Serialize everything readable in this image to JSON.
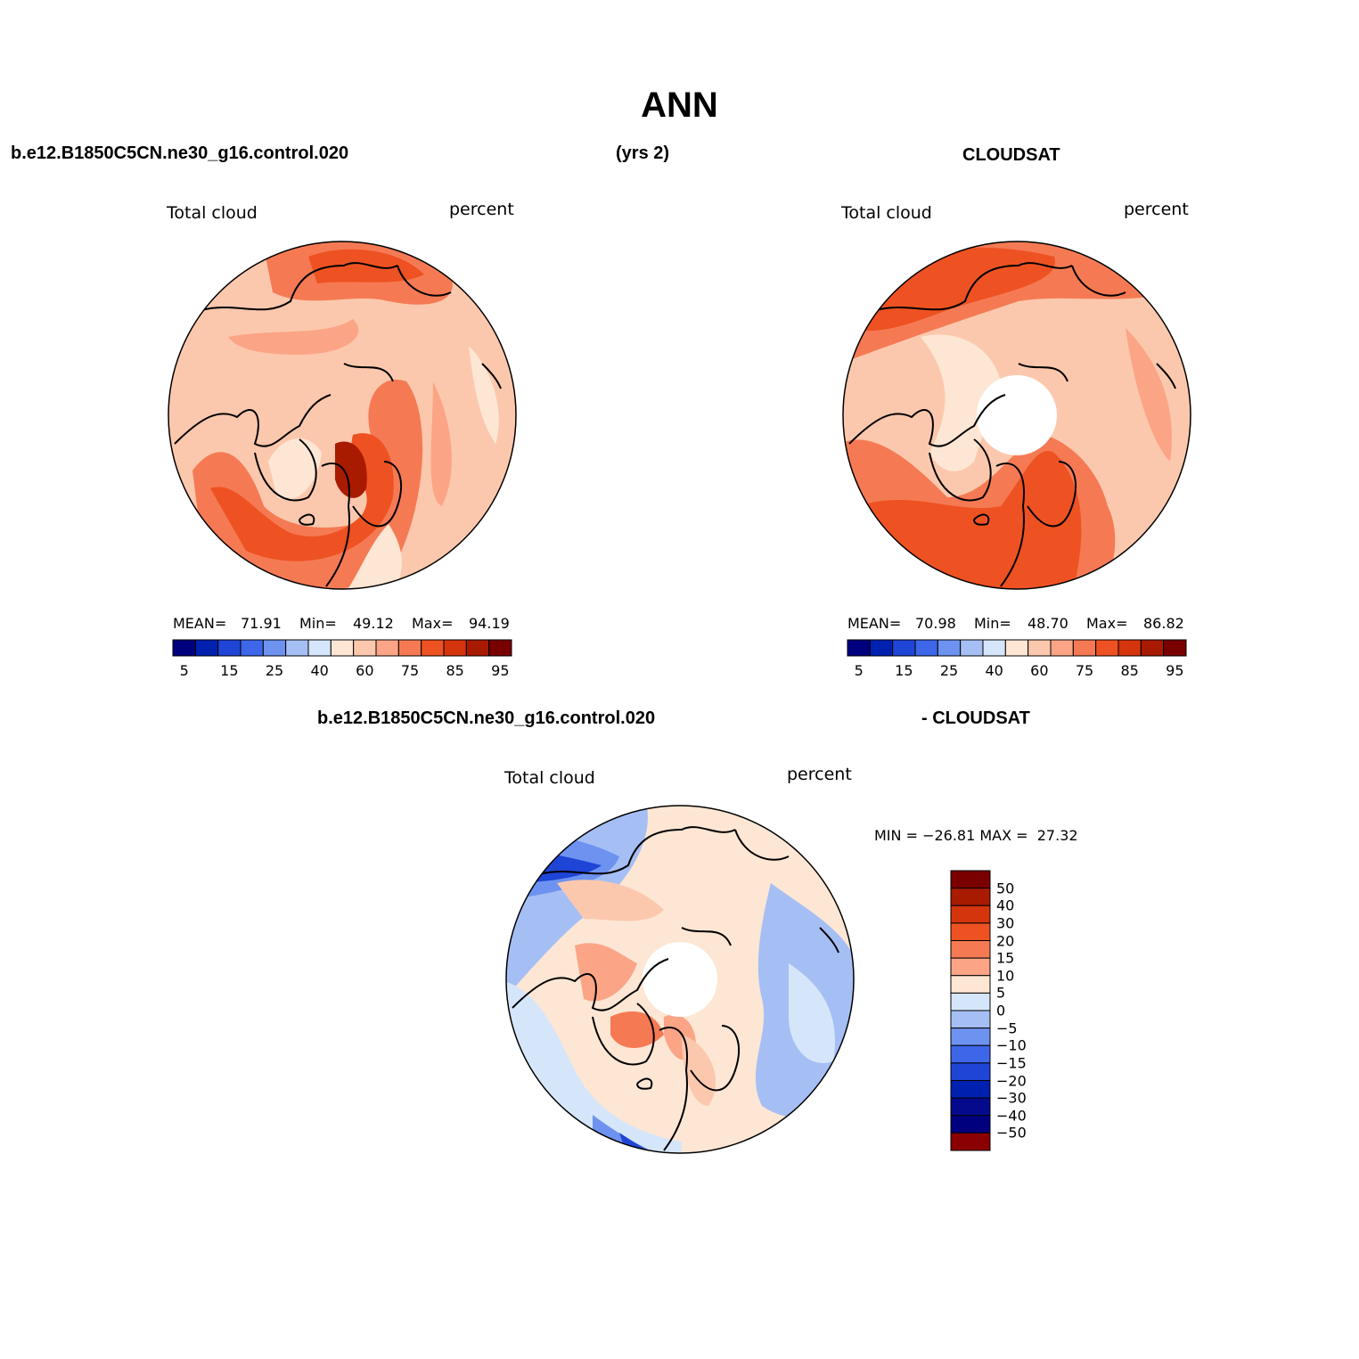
{
  "figure": {
    "title": "ANN",
    "top_left_case": "b.e12.B1850C5CN.ne30_g16.control.020",
    "top_years": "(yrs 2)",
    "top_right_obs": "CLOUDSAT",
    "bottom_case": "b.e12.B1850C5CN.ne30_g16.control.020",
    "bottom_obs": "- CLOUDSAT"
  },
  "colors": {
    "abs_palette": [
      "#00007f",
      "#0020b0",
      "#1f45d6",
      "#3d66e8",
      "#6d92f0",
      "#a5bff5",
      "#d6e6fa",
      "#fde6d4",
      "#fcc8ad",
      "#fba586",
      "#f57a54",
      "#ee5222",
      "#d4350d",
      "#a81b00",
      "#7a0000"
    ],
    "diff_palette": [
      "#7a0000",
      "#a81b00",
      "#d4350d",
      "#ee5222",
      "#f57a54",
      "#fba586",
      "#fde6d4",
      "#d6e6fa",
      "#a5bff5",
      "#6d92f0",
      "#3d66e8",
      "#1f45d6",
      "#0020b0",
      "#050a8c",
      "#00007f",
      "#8b0000"
    ]
  },
  "panels": {
    "model": {
      "variable": "Total cloud",
      "units": "percent",
      "mean_label": "MEAN=",
      "mean": "71.91",
      "min_label": "Min=",
      "min": "49.12",
      "max_label": "Max=",
      "max": "94.19"
    },
    "obs": {
      "variable": "Total cloud",
      "units": "percent",
      "mean_label": "MEAN=",
      "mean": "70.98",
      "min_label": "Min=",
      "min": "48.70",
      "max_label": "Max=",
      "max": "86.82"
    },
    "diff": {
      "variable": "Total cloud",
      "units": "percent",
      "minmax": "MIN = −26.81 MAX =  27.32"
    }
  },
  "colorbar_abs_ticks": [
    "5",
    "15",
    "25",
    "40",
    "60",
    "75",
    "85",
    "95"
  ],
  "colorbar_diff_ticks": [
    "50",
    "40",
    "30",
    "20",
    "15",
    "10",
    "5",
    "0",
    "−5",
    "−10",
    "−15",
    "−20",
    "−30",
    "−40",
    "−50"
  ],
  "chart_data": [
    {
      "type": "map",
      "projection": "north-polar-stereographic",
      "title": "Total cloud",
      "units": "percent",
      "source": "b.e12.B1850C5CN.ne30_g16.control.020",
      "mean": 71.91,
      "min": 49.12,
      "max": 94.19,
      "contour_levels": [
        5,
        10,
        15,
        20,
        25,
        30,
        40,
        50,
        60,
        70,
        75,
        80,
        85,
        90,
        95
      ]
    },
    {
      "type": "map",
      "projection": "north-polar-stereographic",
      "title": "Total cloud",
      "units": "percent",
      "source": "CLOUDSAT",
      "mean": 70.98,
      "min": 48.7,
      "max": 86.82,
      "contour_levels": [
        5,
        10,
        15,
        20,
        25,
        30,
        40,
        50,
        60,
        70,
        75,
        80,
        85,
        90,
        95
      ]
    },
    {
      "type": "map",
      "projection": "north-polar-stereographic",
      "title": "Total cloud",
      "units": "percent",
      "source": "b.e12.B1850C5CN.ne30_g16.control.020 - CLOUDSAT",
      "min": -26.81,
      "max": 27.32,
      "contour_levels": [
        -50,
        -40,
        -30,
        -20,
        -15,
        -10,
        -5,
        0,
        5,
        10,
        15,
        20,
        30,
        40,
        50
      ]
    }
  ]
}
